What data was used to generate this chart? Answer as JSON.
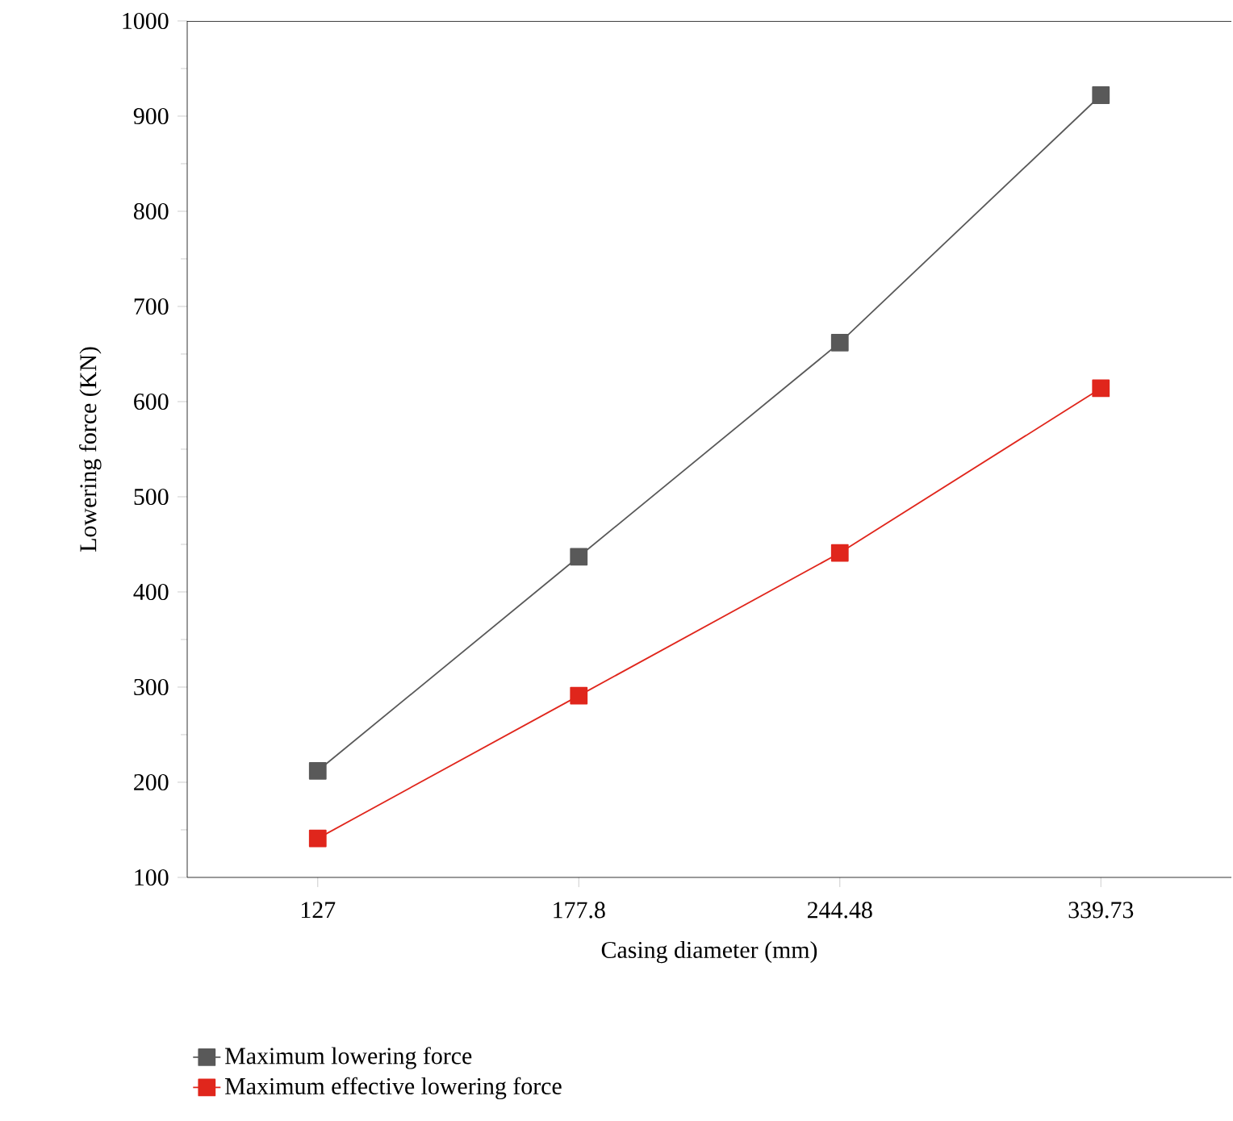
{
  "chart_data": {
    "type": "line",
    "xlabel": "Casing diameter (mm)",
    "ylabel": "Lowering force (KN)",
    "categories": [
      "127",
      "177.8",
      "244.48",
      "339.73"
    ],
    "series": [
      {
        "name": "Maximum lowering force",
        "color": "#595959",
        "values": [
          212,
          437,
          662,
          922
        ]
      },
      {
        "name": "Maximum effective lowering force",
        "color": "#e0261c",
        "values": [
          141,
          291,
          441,
          614
        ]
      }
    ],
    "ylim": [
      100,
      1000
    ],
    "yticks": [
      100,
      200,
      300,
      400,
      500,
      600,
      700,
      800,
      900,
      1000
    ],
    "grid": false,
    "legend": "bottom left",
    "marker": "square",
    "line_style": "solid"
  }
}
